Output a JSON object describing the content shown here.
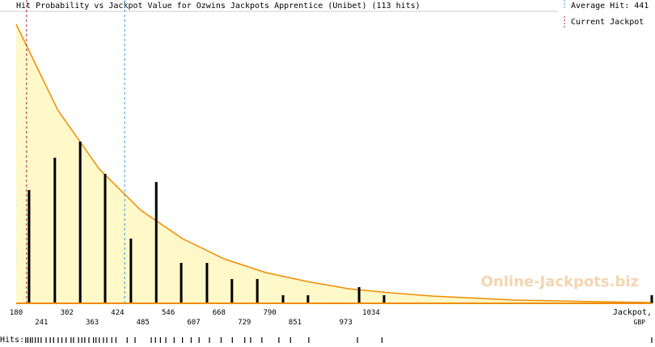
{
  "chart_data": {
    "type": "bar",
    "title": "Hit Probability vs Jackpot Value for Ozwins Jackpots Apprentice (Unibet) (113 hits)",
    "watermark": "Online-Jackpots.biz",
    "xlabel": [
      "Jackpot,",
      "GBP"
    ],
    "rug_label": "Hits:",
    "xlim": [
      180,
      1709
    ],
    "ylim": [
      0,
      34.5
    ],
    "xticks": [
      180,
      241,
      302,
      363,
      424,
      485,
      546,
      607,
      668,
      729,
      790,
      851,
      973,
      1034
    ],
    "x": [
      211,
      273,
      334,
      394,
      456,
      517,
      577,
      639,
      699,
      760,
      822,
      882,
      1005,
      1065,
      1709
    ],
    "values": [
      14,
      18,
      20,
      16,
      8,
      15,
      5,
      5,
      3,
      3,
      1,
      1,
      2,
      1,
      1
    ],
    "color": "#000000",
    "curve": {
      "color": "#f08c00",
      "fill": "#fff8c8",
      "x": [
        180,
        280,
        380,
        480,
        580,
        680,
        780,
        880,
        980,
        1080,
        1180,
        1380,
        1580,
        1709
      ],
      "values": [
        34.5,
        23.9,
        16.6,
        11.5,
        8.0,
        5.5,
        3.8,
        2.7,
        1.8,
        1.3,
        0.9,
        0.4,
        0.2,
        0.1
      ]
    },
    "average": {
      "name": "Average Hit: 441",
      "value": 441,
      "color": "#3399dd"
    },
    "current": {
      "name": "Current Jackpot",
      "value": 205,
      "color": "#aa2233"
    },
    "hits": [
      203,
      208,
      214,
      219,
      226,
      233,
      240,
      252,
      262,
      270,
      281,
      290,
      300,
      312,
      318,
      330,
      338,
      345,
      355,
      366,
      372,
      380,
      390,
      398,
      410,
      420,
      447,
      466,
      505,
      515,
      527,
      540,
      560,
      580,
      601,
      620,
      645,
      673,
      700,
      730,
      744,
      771,
      812,
      840,
      884,
      1001,
      1060,
      1709
    ]
  }
}
